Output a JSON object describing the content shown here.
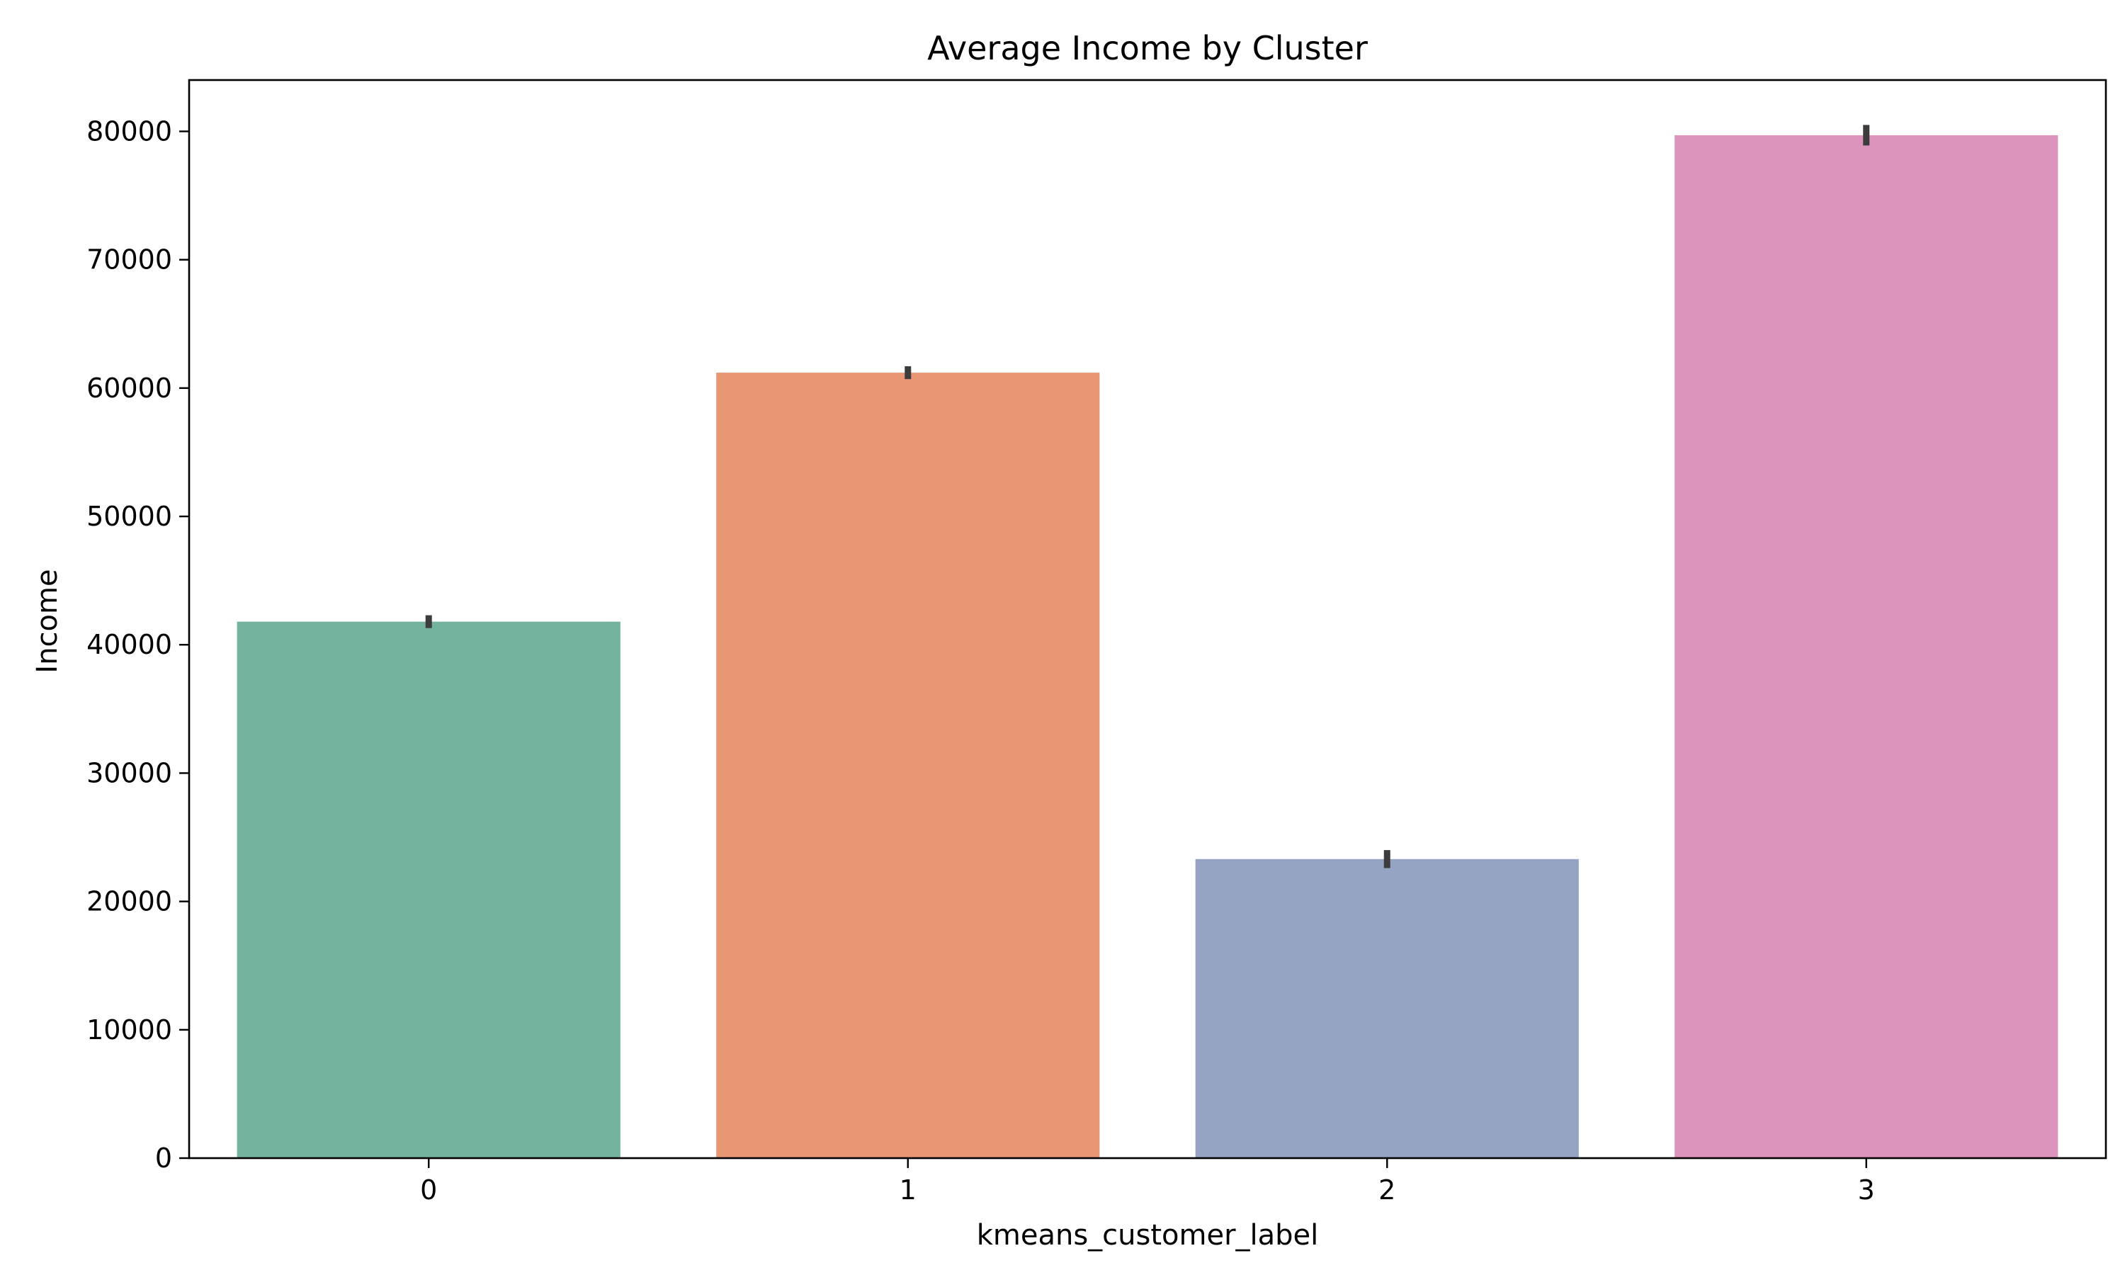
{
  "chart_data": {
    "type": "bar",
    "title": "Average Income by Cluster",
    "xlabel": "kmeans_customer_label",
    "ylabel": "Income",
    "categories": [
      "0",
      "1",
      "2",
      "3"
    ],
    "values": [
      41800,
      61200,
      23300,
      79700
    ],
    "error_bars": [
      [
        41300,
        42300
      ],
      [
        60700,
        61700
      ],
      [
        22600,
        24000
      ],
      [
        78900,
        80500
      ]
    ],
    "ylim": [
      0,
      84000
    ],
    "yticks": [
      0,
      10000,
      20000,
      30000,
      40000,
      50000,
      60000,
      70000,
      80000
    ],
    "ytick_labels": [
      "0",
      "10000",
      "20000",
      "30000",
      "40000",
      "50000",
      "60000",
      "70000",
      "80000"
    ],
    "colors": [
      "#74b49f",
      "#e89674",
      "#95a4c3",
      "#dc94bd"
    ],
    "error_bar_color": "#3c3c3c",
    "grid": false,
    "legend": "none"
  }
}
